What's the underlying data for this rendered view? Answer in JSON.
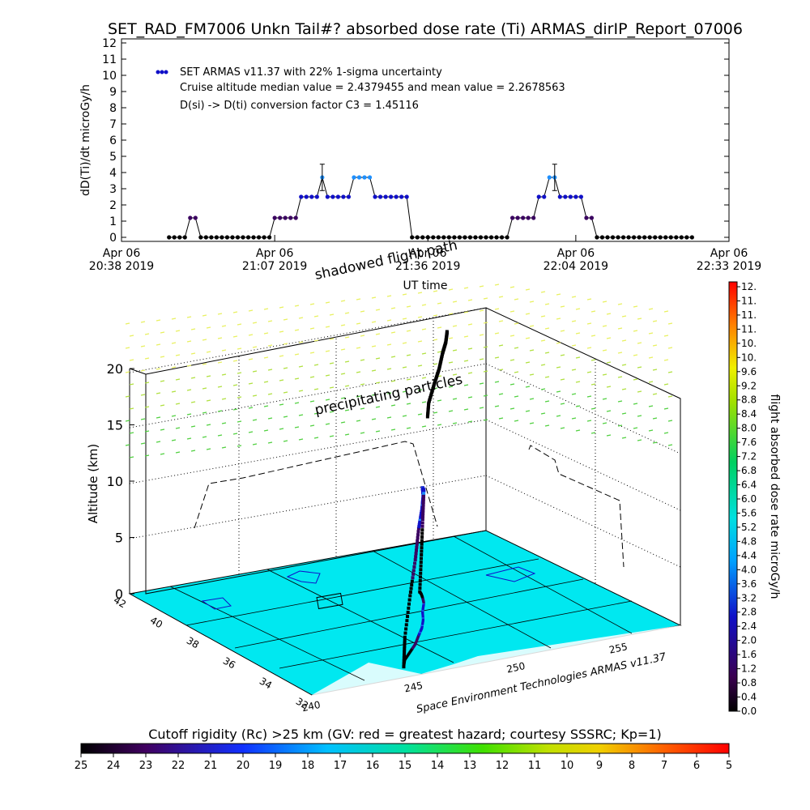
{
  "title": "SET_RAD_FM7006  Unkn Tail#? absorbed dose rate (Ti) ARMAS_dirIP_Report_07006",
  "chart_data": [
    {
      "type": "scatter",
      "title": "SET_RAD_FM7006  Unkn Tail#? absorbed dose rate (Ti) ARMAS_dirIP_Report_07006",
      "ylabel": "dD(Ti)/dt microGy/h",
      "xlabel": "UT time",
      "ylim": [
        0,
        12
      ],
      "yticks": [
        "0",
        "1",
        "2",
        "3",
        "4",
        "5",
        "6",
        "7",
        "8",
        "9",
        "10",
        "11",
        "12"
      ],
      "xticks": [
        {
          "date": "Apr 06",
          "time": "20:38 2019",
          "minute": 0
        },
        {
          "date": "Apr 06",
          "time": "21:07 2019",
          "minute": 29
        },
        {
          "date": "Apr 06",
          "time": "21:36 2019",
          "minute": 58
        },
        {
          "date": "Apr 06",
          "time": "22:04 2019",
          "minute": 86
        },
        {
          "date": "Apr 06",
          "time": "22:33 2019",
          "minute": 115
        }
      ],
      "xlim_minutes": [
        0,
        115
      ],
      "legend": {
        "placement": "top-left",
        "series_label": "SET ARMAS v11.37 with 22% 1-sigma uncertainty",
        "note_median": "Cruise altitude median value = 2.4379455 and mean value = 2.2678563",
        "note_conversion": "D(si) -> D(ti) conversion factor C3 = 1.45116"
      },
      "series": [
        {
          "name": "SET ARMAS v11.37 with 22% 1-sigma uncertainty",
          "x_minutes": [
            9,
            10,
            11,
            12,
            13,
            14,
            15,
            16,
            17,
            18,
            19,
            20,
            21,
            22,
            23,
            24,
            25,
            26,
            27,
            28,
            29,
            30,
            31,
            32,
            33,
            34,
            35,
            36,
            37,
            38,
            39,
            40,
            41,
            42,
            43,
            44,
            45,
            46,
            47,
            48,
            49,
            50,
            51,
            52,
            53,
            54,
            55,
            56,
            57,
            58,
            59,
            60,
            61,
            62,
            63,
            64,
            65,
            66,
            67,
            68,
            69,
            70,
            71,
            72,
            73,
            74,
            75,
            76,
            77,
            78,
            79,
            80,
            81,
            82,
            83,
            84,
            85,
            86,
            87,
            88,
            89,
            90,
            91,
            92,
            93,
            94,
            95,
            96,
            97,
            98,
            99,
            100,
            101,
            102,
            103,
            104,
            105,
            106,
            107,
            108
          ],
          "values": [
            0,
            0,
            0,
            0,
            1.2,
            1.2,
            0,
            0,
            0,
            0,
            0,
            0,
            0,
            0,
            0,
            0,
            0,
            0,
            0,
            0,
            1.2,
            1.2,
            1.2,
            1.2,
            1.2,
            2.5,
            2.5,
            2.5,
            2.5,
            3.7,
            2.5,
            2.5,
            2.5,
            2.5,
            2.5,
            3.7,
            3.7,
            3.7,
            3.7,
            2.5,
            2.5,
            2.5,
            2.5,
            2.5,
            2.5,
            2.5,
            0,
            0,
            0,
            0,
            0,
            0,
            0,
            0,
            0,
            0,
            0,
            0,
            0,
            0,
            0,
            0,
            0,
            0,
            0,
            1.2,
            1.2,
            1.2,
            1.2,
            1.2,
            2.5,
            2.5,
            3.7,
            3.7,
            2.5,
            2.5,
            2.5,
            2.5,
            2.5,
            1.2,
            1.2,
            0,
            0,
            0,
            0,
            0,
            0,
            0,
            0,
            0,
            0,
            0,
            0,
            0,
            0,
            0,
            0,
            0,
            0,
            0
          ],
          "error_bars_at_minutes": [
            38,
            82
          ],
          "color_scale": "dose rate (same as right colorbar)"
        }
      ]
    },
    {
      "type": "scatter",
      "title": "",
      "zlabel": "Altitude (km)",
      "zticks": [
        "0",
        "5",
        "10",
        "15",
        "20"
      ],
      "zlim": [
        0,
        20
      ],
      "latitude_ticks": [
        "32",
        "34",
        "36",
        "38",
        "40",
        "42"
      ],
      "longitude_ticks": [
        "240",
        "245",
        "250",
        "255"
      ],
      "annotations": {
        "shadowed": "shadowed flight path",
        "precipitating": "precipitating particles",
        "credit": "Space Environment Technologies ARMAS v11.37"
      },
      "flight_path_lat_lon_alt": [
        [
          32.8,
          245.2,
          0.0
        ],
        [
          33.3,
          245.7,
          2.0
        ],
        [
          33.8,
          246.4,
          5.0
        ],
        [
          34.3,
          247.1,
          7.5
        ],
        [
          34.9,
          247.8,
          9.5
        ],
        [
          35.4,
          248.4,
          10.5
        ],
        [
          36.0,
          249.0,
          11.0
        ],
        [
          36.6,
          249.5,
          11.0
        ],
        [
          37.2,
          250.1,
          10.0
        ],
        [
          37.6,
          250.4,
          7.0
        ],
        [
          37.9,
          250.6,
          3.5
        ],
        [
          38.1,
          250.7,
          0.0
        ]
      ],
      "dose_colorbar": {
        "label": "flight absorbed dose rate microGy/h",
        "ticks": [
          "0.0",
          "0.4",
          "0.8",
          "1.2",
          "1.6",
          "2.0",
          "2.4",
          "2.8",
          "3.2",
          "3.6",
          "4.0",
          "4.4",
          "4.8",
          "5.2",
          "5.6",
          "6.0",
          "6.4",
          "6.8",
          "7.2",
          "7.6",
          "8.0",
          "8.4",
          "8.8",
          "9.2",
          "9.6",
          "10.",
          "10.",
          "11.",
          "11.",
          "11.",
          "12."
        ]
      },
      "cutoff_colorbar": {
        "label": "Cutoff rigidity (Rc) >25 km (GV: red = greatest hazard; courtesy SSSRC; Kp=1)",
        "ticks": [
          "25",
          "24",
          "23",
          "22",
          "21",
          "20",
          "19",
          "18",
          "17",
          "16",
          "15",
          "14",
          "13",
          "12",
          "11",
          "10",
          "9",
          "8",
          "7",
          "6",
          "5"
        ]
      }
    }
  ]
}
